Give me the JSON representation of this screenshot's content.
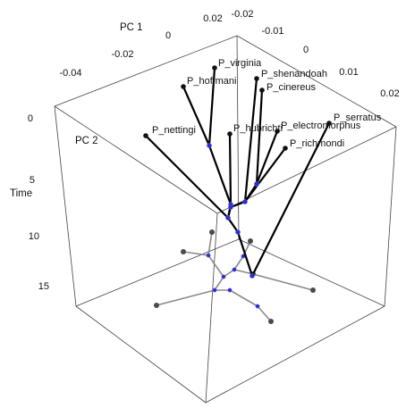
{
  "chart_data": {
    "type": "scatter",
    "variant": "3d-phylomorphospace",
    "x_axis": {
      "label": "PC 1",
      "ticks": [
        "-0.04",
        "-0.02",
        "0",
        "0.02"
      ]
    },
    "y_axis": {
      "label": "PC 2",
      "ticks": [
        "-0.02",
        "-0.01",
        "0",
        "0.01",
        "0.02"
      ]
    },
    "z_axis": {
      "label": "Time",
      "ticks": [
        "0",
        "5",
        "10",
        "15"
      ],
      "ylim": [
        0,
        15
      ],
      "reversed": true
    },
    "tips": [
      {
        "name": "P_virginia",
        "label": "P_virginia"
      },
      {
        "name": "P_hoffmani",
        "label": "P_hoffmani"
      },
      {
        "name": "P_shenandoah",
        "label": "P_shenandoah"
      },
      {
        "name": "P_cinereus",
        "label": "P_cinereus"
      },
      {
        "name": "P_serratus",
        "label": "P_serratus"
      },
      {
        "name": "P_nettingi",
        "label": "P_nettingi"
      },
      {
        "name": "P_hubrichti",
        "label": "P_hubrichti"
      },
      {
        "name": "P_electromorphus",
        "label": "P_electromorphus"
      },
      {
        "name": "P_richmondi",
        "label": "P_richmondi"
      }
    ],
    "grid": false,
    "node_colors": {
      "tip": "#111111",
      "internal": "#2b2bd8",
      "projection_tip": "#4a4a4a",
      "projection_internal": "#2b2bd8"
    },
    "branch_colors": {
      "tree": "#000000",
      "projection": "#8a8a8a"
    }
  }
}
